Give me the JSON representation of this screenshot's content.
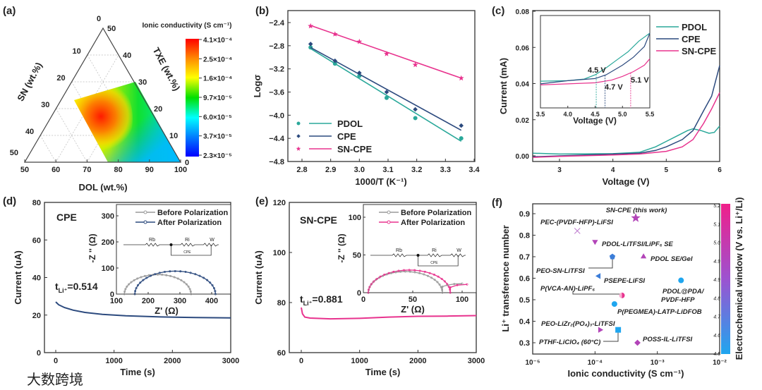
{
  "figure": {
    "panel_labels": [
      "(a)",
      "(b)",
      "(c)",
      "(d)",
      "(e)",
      "(f)"
    ],
    "watermark": "大数跨境"
  },
  "colors": {
    "PDOL": "#2aa89a",
    "CPE": "#2c4a7e",
    "SN-CPE": "#e8338e",
    "before": "#9a9a9a",
    "purple": "#b244b8",
    "blue": "#3b7dd8",
    "lightblue": "#1fa6ef",
    "highlight": "#e8324a"
  },
  "chart_data": [
    {
      "panel": "(a)",
      "type": "heatmap",
      "subtype": "ternary",
      "bottom_axis": {
        "label": "DOL (wt.%)",
        "ticks": [
          "50",
          "60",
          "70",
          "80",
          "90",
          "100"
        ]
      },
      "left_axis": {
        "label": "SN (wt.%)",
        "ticks": [
          "0",
          "10",
          "20",
          "30",
          "40",
          "50"
        ]
      },
      "right_axis": {
        "label": "TXE (wt.%)",
        "ticks": [
          "50",
          "40",
          "30",
          "20",
          "10",
          "0"
        ]
      },
      "colorbar": {
        "title": "Ionic conductivity (S cm⁻¹)",
        "ticks": [
          "4.1×10⁻⁴",
          "2.5×10⁻⁴",
          "1.6×10⁻⁴",
          "9.7×10⁻⁵",
          "6.0×10⁻⁵",
          "3.7×10⁻⁵",
          "2.3×10⁻⁵"
        ],
        "colors": [
          "#ff0000",
          "#ff8c00",
          "#ffff00",
          "#00e000",
          "#00ffff",
          "#0080ff",
          "#0000ff"
        ]
      },
      "maximum_region": {
        "DOL": 75,
        "SN": 35,
        "TXE": 20,
        "value": "4.1×10⁻⁴"
      }
    },
    {
      "panel": "(b)",
      "type": "scatter",
      "xlabel": "1000/T (K⁻¹)",
      "ylabel": "Logσ",
      "xticks": [
        "2.8",
        "2.9",
        "3.0",
        "3.1",
        "3.2",
        "3.3",
        "3.4"
      ],
      "yticks": [
        "−2.4",
        "−2.8",
        "−3.2",
        "−3.6",
        "−4.0",
        "−4.4",
        "−4.8"
      ],
      "xlim": [
        2.75,
        3.4
      ],
      "ylim": [
        -4.8,
        -2.2
      ],
      "legend": "bottom-left",
      "x": [
        2.83,
        2.915,
        3.0,
        3.095,
        3.195,
        3.355
      ],
      "series": [
        {
          "name": "PDOL",
          "marker": "circle",
          "values": [
            -2.83,
            -3.11,
            -3.32,
            -3.7,
            -4.05,
            -4.4
          ],
          "fit": [
            -2.85,
            -4.45
          ]
        },
        {
          "name": "CPE",
          "marker": "diamond",
          "values": [
            -2.77,
            -3.06,
            -3.27,
            -3.6,
            -3.9,
            -4.18
          ],
          "fit": [
            -2.83,
            -4.26
          ]
        },
        {
          "name": "SN-CPE",
          "marker": "star",
          "values": [
            -2.46,
            -2.6,
            -2.73,
            -2.94,
            -3.13,
            -3.36
          ],
          "fit": [
            -2.45,
            -3.36
          ]
        }
      ]
    },
    {
      "panel": "(c)",
      "type": "line",
      "xlabel": "Voltage (V)",
      "ylabel": "Current (mA)",
      "xticks": [
        "3",
        "4",
        "5",
        "6"
      ],
      "yticks": [
        "0.00",
        "0.02",
        "0.04",
        "0.06",
        "0.08"
      ],
      "xlim": [
        2.5,
        6
      ],
      "ylim": [
        -0.003,
        0.08
      ],
      "legend": "top-right",
      "series": [
        {
          "name": "PDOL",
          "points": [
            [
              2.5,
              0.0015
            ],
            [
              3,
              0.001
            ],
            [
              4,
              0.0012
            ],
            [
              4.5,
              0.002
            ],
            [
              4.8,
              0.005
            ],
            [
              5,
              0.008
            ],
            [
              5.2,
              0.011
            ],
            [
              5.4,
              0.014
            ],
            [
              5.5,
              0.015
            ],
            [
              5.65,
              0.014
            ],
            [
              5.8,
              0.0125
            ],
            [
              5.9,
              0.013
            ],
            [
              6,
              0.0165
            ]
          ]
        },
        {
          "name": "CPE",
          "points": [
            [
              2.5,
              -0.0005
            ],
            [
              3,
              0
            ],
            [
              4,
              0.001
            ],
            [
              4.5,
              0.0015
            ],
            [
              4.8,
              0.003
            ],
            [
              5,
              0.005
            ],
            [
              5.3,
              0.009
            ],
            [
              5.5,
              0.014
            ],
            [
              5.7,
              0.025
            ],
            [
              5.85,
              0.033
            ],
            [
              6,
              0.05
            ]
          ]
        },
        {
          "name": "SN-CPE",
          "points": [
            [
              2.5,
              -0.0008
            ],
            [
              3,
              -0.0003
            ],
            [
              4,
              0.0005
            ],
            [
              4.5,
              0.001
            ],
            [
              5,
              0.0025
            ],
            [
              5.3,
              0.005
            ],
            [
              5.5,
              0.009
            ],
            [
              5.7,
              0.018
            ],
            [
              5.85,
              0.026
            ],
            [
              6,
              0.035
            ]
          ]
        }
      ],
      "inset": {
        "xlabel": "Voltage (V)",
        "xticks": [
          "3.5",
          "4.0",
          "4.5",
          "5.0",
          "5.5"
        ],
        "xlim": [
          3.5,
          5.5
        ],
        "ylim": [
          -0.004,
          0.0133
        ],
        "series": [
          {
            "name": "PDOL",
            "points": [
              [
                3.5,
                0.001
              ],
              [
                4,
                0.0011
              ],
              [
                4.3,
                0.0014
              ],
              [
                4.5,
                0.0022
              ],
              [
                4.7,
                0.0035
              ],
              [
                4.9,
                0.005
              ],
              [
                5.1,
                0.0065
              ],
              [
                5.3,
                0.0085
              ],
              [
                5.5,
                0.01
              ]
            ]
          },
          {
            "name": "CPE",
            "points": [
              [
                3.5,
                0.0005
              ],
              [
                4,
                0.0011
              ],
              [
                4.5,
                0.0015
              ],
              [
                4.7,
                0.0022
              ],
              [
                5,
                0.004
              ],
              [
                5.2,
                0.0055
              ],
              [
                5.4,
                0.0075
              ],
              [
                5.5,
                0.01
              ]
            ]
          },
          {
            "name": "SN-CPE",
            "points": [
              [
                3.5,
                0.0003
              ],
              [
                4,
                0.0005
              ],
              [
                4.5,
                0.0007
              ],
              [
                4.8,
                0.0012
              ],
              [
                5,
                0.0019
              ],
              [
                5.2,
                0.0028
              ],
              [
                5.4,
                0.004
              ],
              [
                5.5,
                0.0052
              ]
            ]
          }
        ],
        "onsets": [
          {
            "series": "PDOL",
            "voltage": 4.52,
            "label": "4.5 V"
          },
          {
            "series": "CPE",
            "voltage": 4.68,
            "label": "4.7 V"
          },
          {
            "series": "SN-CPE",
            "voltage": 5.15,
            "label": "5.1 V"
          }
        ]
      }
    },
    {
      "panel": "(d)",
      "type": "line",
      "title": "CPE",
      "annotation": "t",
      "annotation_sub": "Li⁺",
      "annotation_value": "=0.514",
      "xlabel": "Time (s)",
      "ylabel": "Current (uA)",
      "xticks": [
        "0",
        "1000",
        "2000",
        "3000"
      ],
      "yticks": [
        "0",
        "20",
        "40",
        "60",
        "80"
      ],
      "xlim": [
        -200,
        3000
      ],
      "ylim": [
        0,
        80
      ],
      "points": [
        [
          0,
          27
        ],
        [
          50,
          25.5
        ],
        [
          150,
          24
        ],
        [
          300,
          22.6
        ],
        [
          500,
          21.4
        ],
        [
          800,
          20.4
        ],
        [
          1200,
          19.6
        ],
        [
          1800,
          19
        ],
        [
          2400,
          18.7
        ],
        [
          3000,
          18.5
        ]
      ],
      "inset": {
        "xlabel": "Z' (Ω)",
        "ylabel": "-Z '' (Ω)",
        "xticks": [
          "100",
          "200",
          "300",
          "400"
        ],
        "yticks": [
          "0",
          "100",
          "200",
          "300"
        ],
        "xlim": [
          100,
          460
        ],
        "ylim": [
          0,
          350
        ],
        "legend": [
          "Before Polarization",
          "After Polarization"
        ],
        "circuit": {
          "rb": "Rb",
          "ri": "Ri",
          "w": "W",
          "cpe": "CPE"
        },
        "before": {
          "start": 125,
          "end": 335,
          "peak": 75
        },
        "after": {
          "start": 158,
          "end": 412,
          "peak": 88
        }
      }
    },
    {
      "panel": "(e)",
      "type": "line",
      "title": "SN-CPE",
      "annotation": "t",
      "annotation_sub": "Li⁺",
      "annotation_value": "=0.881",
      "xlabel": "Time (s)",
      "ylabel": "Current (uA)",
      "xticks": [
        "0",
        "1000",
        "2000",
        "3000"
      ],
      "yticks": [
        "60",
        "80",
        "100",
        "120"
      ],
      "xlim": [
        -200,
        3000
      ],
      "ylim": [
        60,
        120
      ],
      "points": [
        [
          0,
          78
        ],
        [
          20,
          75.5
        ],
        [
          60,
          74.2
        ],
        [
          150,
          73.8
        ],
        [
          500,
          73.5
        ],
        [
          1000,
          73.7
        ],
        [
          1500,
          74.2
        ],
        [
          2000,
          74.5
        ],
        [
          2500,
          74.6
        ],
        [
          3000,
          74.8
        ]
      ],
      "inset": {
        "xlabel": "Z' (Ω)",
        "ylabel": "-Z '' (Ω)",
        "xticks": [
          "0",
          "50",
          "100"
        ],
        "yticks": [
          "0",
          "50",
          "100"
        ],
        "xlim": [
          -5,
          120
        ],
        "ylim": [
          0,
          120
        ],
        "legend": [
          "Before Polarization",
          "After Polarization"
        ],
        "circuit": {
          "rb": "Rb",
          "ri": "Ri",
          "w": "W",
          "cpe": "CPE"
        },
        "before": {
          "start": 5,
          "end": 80,
          "peak": 28,
          "tail": [
            [
              80,
              8
            ],
            [
              85,
              10
            ],
            [
              92,
              11.5
            ],
            [
              100,
              12
            ]
          ]
        },
        "after": {
          "start": 5,
          "end": 88,
          "peak": 30,
          "tail": [
            [
              88,
              7
            ],
            [
              95,
              10
            ],
            [
              105,
              11
            ]
          ]
        }
      }
    },
    {
      "panel": "(f)",
      "type": "scatter",
      "xlabel": "Ionic conductivity (S cm⁻¹)",
      "ylabel": "Li⁺ transference number",
      "xscale": "log",
      "xticks": [
        "10⁻⁵",
        "10⁻⁴",
        "10⁻³",
        "10⁻²"
      ],
      "yticks": [
        "0.3",
        "0.4",
        "0.5",
        "0.6",
        "0.7",
        "0.8",
        "0.9"
      ],
      "xlim": [
        1e-05,
        0.01
      ],
      "ylim": [
        0.25,
        0.945
      ],
      "colorbar": {
        "label": "Electrochemical window (V vs. Li⁺/Li)",
        "ticks": [
          "5.2",
          "5.1",
          "5.0",
          "4.9",
          "4.9",
          "4.8",
          "4.7",
          "4.6",
          "4.5"
        ],
        "colors": [
          "#f0208a",
          "#1fa6ef"
        ]
      },
      "points": [
        {
          "label": "SN-CPE (this work)",
          "x": 0.00045,
          "y": 0.88,
          "marker": "star",
          "color": "purple"
        },
        {
          "label": "PEC-(PVDF-HFP)-LiFSI",
          "x": 5.2e-05,
          "y": 0.82,
          "marker": "x",
          "color": "purple"
        },
        {
          "label": "PDOL-LiTFSI/LiPF₆ SE",
          "x": 0.0001,
          "y": 0.77,
          "marker": "tri-down",
          "color": "purple"
        },
        {
          "label": "PDOL SE/Gel",
          "x": 0.0006,
          "y": 0.7,
          "marker": "tri-up",
          "color": "purple"
        },
        {
          "label": "PEO-SN-LiTFSI",
          "x": 0.00019,
          "y": 0.7,
          "marker": "pentagon",
          "color": "blue"
        },
        {
          "label": "PSEPE-LiFSI",
          "x": 0.000115,
          "y": 0.61,
          "marker": "tri-left",
          "color": "blue"
        },
        {
          "label": "PDOL@PDA/",
          "label2": "PVDF-HFP",
          "x": 0.0024,
          "y": 0.59,
          "marker": "circle",
          "color": "lightblue"
        },
        {
          "label": "P(VCA-AN)-LiPF₆",
          "x": 0.00027,
          "y": 0.52,
          "marker": "halfcircle",
          "color": "purple"
        },
        {
          "label": "P(PEGMEA)-LATP-LiDFOB",
          "x": 0.000205,
          "y": 0.48,
          "marker": "circle",
          "color": "lightblue"
        },
        {
          "label": "PEO-LiZr₂(PO₄)₃-LiTFSI",
          "x": 0.00012,
          "y": 0.36,
          "marker": "tri-right",
          "color": "purple"
        },
        {
          "label": "PTHF-LiClO₄ (60°C)",
          "x": 0.000235,
          "y": 0.36,
          "marker": "square",
          "color": "lightblue"
        },
        {
          "label": "POSS-IL-LiTFSI",
          "x": 0.00048,
          "y": 0.3,
          "marker": "diamond",
          "color": "purple"
        }
      ]
    }
  ]
}
